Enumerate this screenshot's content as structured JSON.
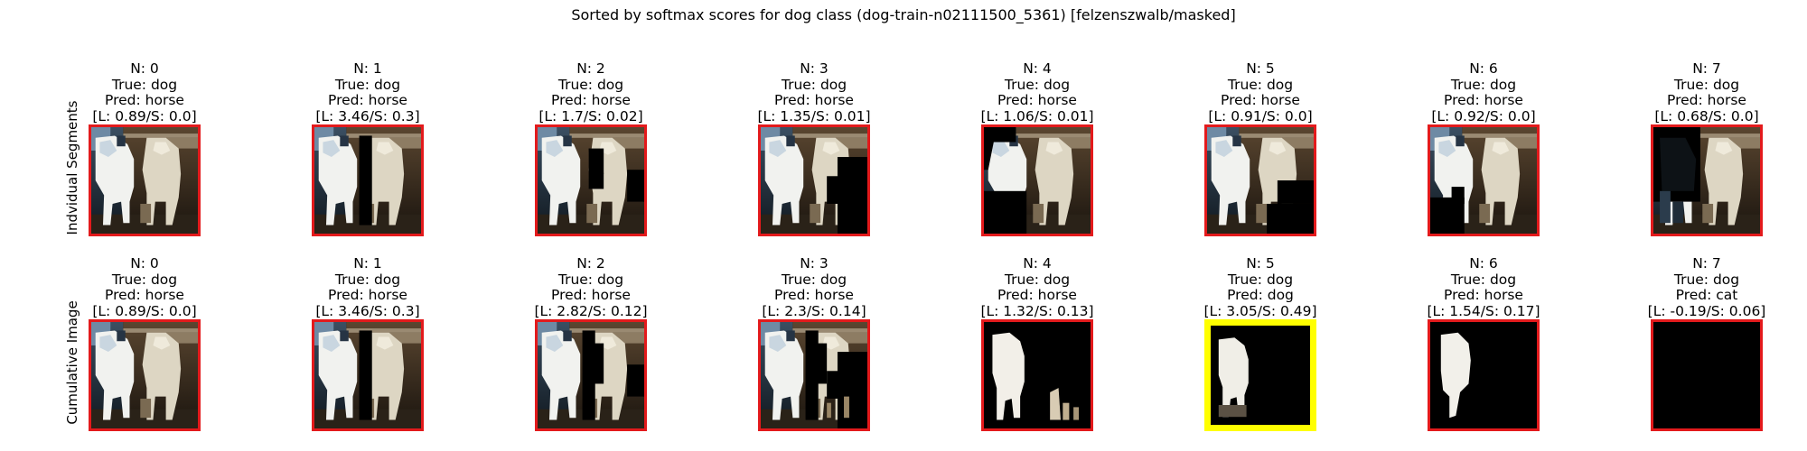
{
  "figure": {
    "title": "Sorted by softmax scores for dog class (dog-train-n02111500_5361) [felzenszwalb/masked]",
    "colors": {
      "highlight": "#ffff00",
      "frame": "#e31a1c"
    }
  },
  "rows": [
    {
      "label": "Indvidual Segments",
      "cells": [
        {
          "n": "N: 0",
          "true_label": "True: dog",
          "pred": "Pred: horse",
          "score": "[L: 0.89/S: 0.0]",
          "mask": "full"
        },
        {
          "n": "N: 1",
          "true_label": "True: dog",
          "pred": "Pred: horse",
          "score": "[L: 3.46/S: 0.3]",
          "mask": "seg1"
        },
        {
          "n": "N: 2",
          "true_label": "True: dog",
          "pred": "Pred: horse",
          "score": "[L: 1.7/S: 0.02]",
          "mask": "seg2"
        },
        {
          "n": "N: 3",
          "true_label": "True: dog",
          "pred": "Pred: horse",
          "score": "[L: 1.35/S: 0.01]",
          "mask": "seg3"
        },
        {
          "n": "N: 4",
          "true_label": "True: dog",
          "pred": "Pred: horse",
          "score": "[L: 1.06/S: 0.01]",
          "mask": "seg4"
        },
        {
          "n": "N: 5",
          "true_label": "True: dog",
          "pred": "Pred: horse",
          "score": "[L: 0.91/S: 0.0]",
          "mask": "seg5"
        },
        {
          "n": "N: 6",
          "true_label": "True: dog",
          "pred": "Pred: horse",
          "score": "[L: 0.92/S: 0.0]",
          "mask": "seg6"
        },
        {
          "n": "N: 7",
          "true_label": "True: dog",
          "pred": "Pred: horse",
          "score": "[L: 0.68/S: 0.0]",
          "mask": "seg7"
        }
      ]
    },
    {
      "label": "Cumulative Image",
      "cells": [
        {
          "n": "N: 0",
          "true_label": "True: dog",
          "pred": "Pred: horse",
          "score": "[L: 0.89/S: 0.0]",
          "mask": "full"
        },
        {
          "n": "N: 1",
          "true_label": "True: dog",
          "pred": "Pred: horse",
          "score": "[L: 3.46/S: 0.3]",
          "mask": "seg1"
        },
        {
          "n": "N: 2",
          "true_label": "True: dog",
          "pred": "Pred: horse",
          "score": "[L: 2.82/S: 0.12]",
          "mask": "cum2"
        },
        {
          "n": "N: 3",
          "true_label": "True: dog",
          "pred": "Pred: horse",
          "score": "[L: 2.3/S: 0.14]",
          "mask": "cum3"
        },
        {
          "n": "N: 4",
          "true_label": "True: dog",
          "pred": "Pred: horse",
          "score": "[L: 1.32/S: 0.13]",
          "mask": "cum4"
        },
        {
          "n": "N: 5",
          "true_label": "True: dog",
          "pred": "Pred: dog",
          "score": "[L: 3.05/S: 0.49]",
          "mask": "cum5",
          "selected": true
        },
        {
          "n": "N: 6",
          "true_label": "True: dog",
          "pred": "Pred: horse",
          "score": "[L: 1.54/S: 0.17]",
          "mask": "cum6"
        },
        {
          "n": "N: 7",
          "true_label": "True: dog",
          "pred": "Pred: cat",
          "score": "[L: -0.19/S: 0.06]",
          "mask": "black"
        }
      ]
    }
  ]
}
